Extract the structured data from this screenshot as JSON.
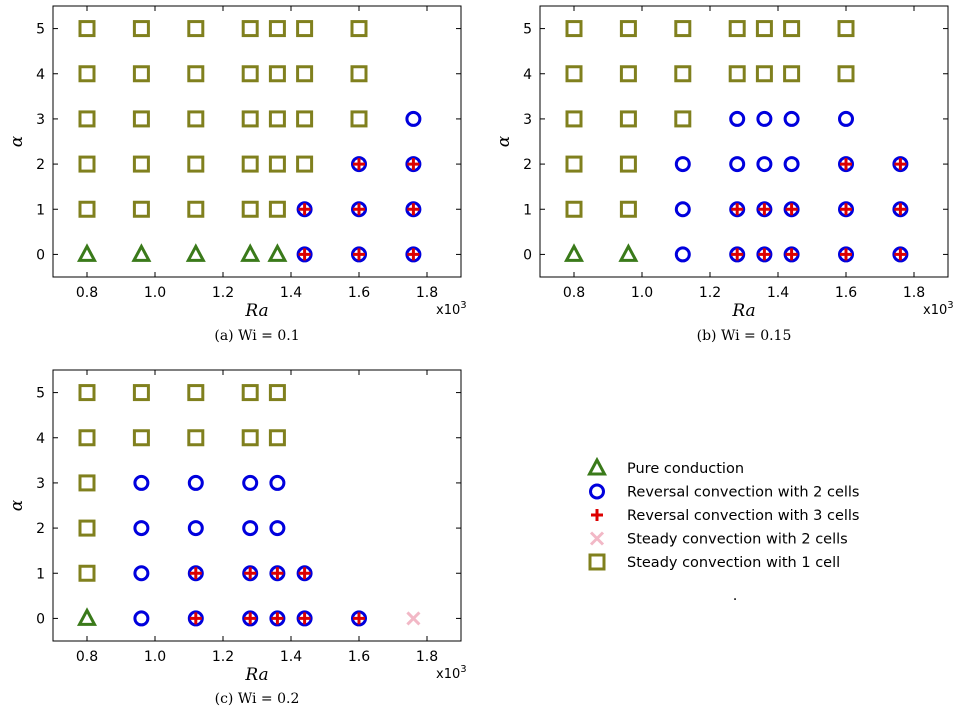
{
  "legend": [
    {
      "key": "tri",
      "label": "Pure conduction",
      "color": "#3a7a1a"
    },
    {
      "key": "circ",
      "label": "Reversal convection with 2 cells",
      "color": "#0000dd"
    },
    {
      "key": "plus",
      "label": "Reversal convection with 3 cells",
      "color": "#dd0000"
    },
    {
      "key": "x",
      "label": "Steady convection with 2 cells",
      "color": "#f2b8c6"
    },
    {
      "key": "sq",
      "label": "Steady convection with 1 cell",
      "color": "#80801e"
    }
  ],
  "legend_dot": ".",
  "chart_data": [
    {
      "type": "scatter",
      "caption": "(a) Wi = 0.1",
      "xlabel": "Ra",
      "ylabel": "α",
      "x_multiplier": "x10",
      "x_multiplier_exp": "3",
      "xlim": [
        0.7,
        1.9
      ],
      "ylim": [
        -0.5,
        5.5
      ],
      "xticks": [
        "0.8",
        "1.0",
        "1.2",
        "1.4",
        "1.6",
        "1.8"
      ],
      "yticks": [
        "0",
        "1",
        "2",
        "3",
        "4",
        "5"
      ],
      "x_values": [
        0.8,
        0.96,
        1.12,
        1.28,
        1.36,
        1.44,
        1.6,
        1.76
      ],
      "points": [
        {
          "x": 0.8,
          "y": 0,
          "m": "tri"
        },
        {
          "x": 0.96,
          "y": 0,
          "m": "tri"
        },
        {
          "x": 1.12,
          "y": 0,
          "m": "tri"
        },
        {
          "x": 1.28,
          "y": 0,
          "m": "tri"
        },
        {
          "x": 1.36,
          "y": 0,
          "m": "tri"
        },
        {
          "x": 1.44,
          "y": 0,
          "m": "circplus"
        },
        {
          "x": 1.6,
          "y": 0,
          "m": "circplus"
        },
        {
          "x": 1.76,
          "y": 0,
          "m": "circplus"
        },
        {
          "x": 0.8,
          "y": 1,
          "m": "sq"
        },
        {
          "x": 0.96,
          "y": 1,
          "m": "sq"
        },
        {
          "x": 1.12,
          "y": 1,
          "m": "sq"
        },
        {
          "x": 1.28,
          "y": 1,
          "m": "sq"
        },
        {
          "x": 1.36,
          "y": 1,
          "m": "sq"
        },
        {
          "x": 1.44,
          "y": 1,
          "m": "circplus"
        },
        {
          "x": 1.6,
          "y": 1,
          "m": "circplus"
        },
        {
          "x": 1.76,
          "y": 1,
          "m": "circplus"
        },
        {
          "x": 0.8,
          "y": 2,
          "m": "sq"
        },
        {
          "x": 0.96,
          "y": 2,
          "m": "sq"
        },
        {
          "x": 1.12,
          "y": 2,
          "m": "sq"
        },
        {
          "x": 1.28,
          "y": 2,
          "m": "sq"
        },
        {
          "x": 1.36,
          "y": 2,
          "m": "sq"
        },
        {
          "x": 1.44,
          "y": 2,
          "m": "sq"
        },
        {
          "x": 1.6,
          "y": 2,
          "m": "circplus"
        },
        {
          "x": 1.76,
          "y": 2,
          "m": "circplus"
        },
        {
          "x": 0.8,
          "y": 3,
          "m": "sq"
        },
        {
          "x": 0.96,
          "y": 3,
          "m": "sq"
        },
        {
          "x": 1.12,
          "y": 3,
          "m": "sq"
        },
        {
          "x": 1.28,
          "y": 3,
          "m": "sq"
        },
        {
          "x": 1.36,
          "y": 3,
          "m": "sq"
        },
        {
          "x": 1.44,
          "y": 3,
          "m": "sq"
        },
        {
          "x": 1.6,
          "y": 3,
          "m": "sq"
        },
        {
          "x": 1.76,
          "y": 3,
          "m": "circ"
        },
        {
          "x": 0.8,
          "y": 4,
          "m": "sq"
        },
        {
          "x": 0.96,
          "y": 4,
          "m": "sq"
        },
        {
          "x": 1.12,
          "y": 4,
          "m": "sq"
        },
        {
          "x": 1.28,
          "y": 4,
          "m": "sq"
        },
        {
          "x": 1.36,
          "y": 4,
          "m": "sq"
        },
        {
          "x": 1.44,
          "y": 4,
          "m": "sq"
        },
        {
          "x": 1.6,
          "y": 4,
          "m": "sq"
        },
        {
          "x": 0.8,
          "y": 5,
          "m": "sq"
        },
        {
          "x": 0.96,
          "y": 5,
          "m": "sq"
        },
        {
          "x": 1.12,
          "y": 5,
          "m": "sq"
        },
        {
          "x": 1.28,
          "y": 5,
          "m": "sq"
        },
        {
          "x": 1.36,
          "y": 5,
          "m": "sq"
        },
        {
          "x": 1.44,
          "y": 5,
          "m": "sq"
        },
        {
          "x": 1.6,
          "y": 5,
          "m": "sq"
        }
      ]
    },
    {
      "type": "scatter",
      "caption": "(b) Wi = 0.15",
      "xlabel": "Ra",
      "ylabel": "α",
      "x_multiplier": "x10",
      "x_multiplier_exp": "3",
      "xlim": [
        0.7,
        1.9
      ],
      "ylim": [
        -0.5,
        5.5
      ],
      "xticks": [
        "0.8",
        "1.0",
        "1.2",
        "1.4",
        "1.6",
        "1.8"
      ],
      "yticks": [
        "0",
        "1",
        "2",
        "3",
        "4",
        "5"
      ],
      "x_values": [
        0.8,
        0.96,
        1.12,
        1.28,
        1.36,
        1.44,
        1.6,
        1.76
      ],
      "points": [
        {
          "x": 0.8,
          "y": 0,
          "m": "tri"
        },
        {
          "x": 0.96,
          "y": 0,
          "m": "tri"
        },
        {
          "x": 1.12,
          "y": 0,
          "m": "circ"
        },
        {
          "x": 1.28,
          "y": 0,
          "m": "circplus"
        },
        {
          "x": 1.36,
          "y": 0,
          "m": "circplus"
        },
        {
          "x": 1.44,
          "y": 0,
          "m": "circplus"
        },
        {
          "x": 1.6,
          "y": 0,
          "m": "circplus"
        },
        {
          "x": 1.76,
          "y": 0,
          "m": "circplus"
        },
        {
          "x": 0.8,
          "y": 1,
          "m": "sq"
        },
        {
          "x": 0.96,
          "y": 1,
          "m": "sq"
        },
        {
          "x": 1.12,
          "y": 1,
          "m": "circ"
        },
        {
          "x": 1.28,
          "y": 1,
          "m": "circplus"
        },
        {
          "x": 1.36,
          "y": 1,
          "m": "circplus"
        },
        {
          "x": 1.44,
          "y": 1,
          "m": "circplus"
        },
        {
          "x": 1.6,
          "y": 1,
          "m": "circplus"
        },
        {
          "x": 1.76,
          "y": 1,
          "m": "circplus"
        },
        {
          "x": 0.8,
          "y": 2,
          "m": "sq"
        },
        {
          "x": 0.96,
          "y": 2,
          "m": "sq"
        },
        {
          "x": 1.12,
          "y": 2,
          "m": "circ"
        },
        {
          "x": 1.28,
          "y": 2,
          "m": "circ"
        },
        {
          "x": 1.36,
          "y": 2,
          "m": "circ"
        },
        {
          "x": 1.44,
          "y": 2,
          "m": "circ"
        },
        {
          "x": 1.6,
          "y": 2,
          "m": "circplus"
        },
        {
          "x": 1.76,
          "y": 2,
          "m": "circplus"
        },
        {
          "x": 0.8,
          "y": 3,
          "m": "sq"
        },
        {
          "x": 0.96,
          "y": 3,
          "m": "sq"
        },
        {
          "x": 1.12,
          "y": 3,
          "m": "sq"
        },
        {
          "x": 1.28,
          "y": 3,
          "m": "circ"
        },
        {
          "x": 1.36,
          "y": 3,
          "m": "circ"
        },
        {
          "x": 1.44,
          "y": 3,
          "m": "circ"
        },
        {
          "x": 1.6,
          "y": 3,
          "m": "circ"
        },
        {
          "x": 0.8,
          "y": 4,
          "m": "sq"
        },
        {
          "x": 0.96,
          "y": 4,
          "m": "sq"
        },
        {
          "x": 1.12,
          "y": 4,
          "m": "sq"
        },
        {
          "x": 1.28,
          "y": 4,
          "m": "sq"
        },
        {
          "x": 1.36,
          "y": 4,
          "m": "sq"
        },
        {
          "x": 1.44,
          "y": 4,
          "m": "sq"
        },
        {
          "x": 1.6,
          "y": 4,
          "m": "sq"
        },
        {
          "x": 0.8,
          "y": 5,
          "m": "sq"
        },
        {
          "x": 0.96,
          "y": 5,
          "m": "sq"
        },
        {
          "x": 1.12,
          "y": 5,
          "m": "sq"
        },
        {
          "x": 1.28,
          "y": 5,
          "m": "sq"
        },
        {
          "x": 1.36,
          "y": 5,
          "m": "sq"
        },
        {
          "x": 1.44,
          "y": 5,
          "m": "sq"
        },
        {
          "x": 1.6,
          "y": 5,
          "m": "sq"
        }
      ]
    },
    {
      "type": "scatter",
      "caption": "(c) Wi = 0.2",
      "xlabel": "Ra",
      "ylabel": "α",
      "x_multiplier": "x10",
      "x_multiplier_exp": "3",
      "xlim": [
        0.7,
        1.9
      ],
      "ylim": [
        -0.5,
        5.5
      ],
      "xticks": [
        "0.8",
        "1.0",
        "1.2",
        "1.4",
        "1.6",
        "1.8"
      ],
      "yticks": [
        "0",
        "1",
        "2",
        "3",
        "4",
        "5"
      ],
      "x_values": [
        0.8,
        0.96,
        1.12,
        1.28,
        1.36,
        1.44,
        1.6,
        1.76
      ],
      "points": [
        {
          "x": 0.8,
          "y": 0,
          "m": "tri"
        },
        {
          "x": 0.96,
          "y": 0,
          "m": "circ"
        },
        {
          "x": 1.12,
          "y": 0,
          "m": "circplus"
        },
        {
          "x": 1.28,
          "y": 0,
          "m": "circplus"
        },
        {
          "x": 1.36,
          "y": 0,
          "m": "circplus"
        },
        {
          "x": 1.44,
          "y": 0,
          "m": "circplus"
        },
        {
          "x": 1.6,
          "y": 0,
          "m": "circplus"
        },
        {
          "x": 1.76,
          "y": 0,
          "m": "x"
        },
        {
          "x": 0.8,
          "y": 1,
          "m": "sq"
        },
        {
          "x": 0.96,
          "y": 1,
          "m": "circ"
        },
        {
          "x": 1.12,
          "y": 1,
          "m": "circplus"
        },
        {
          "x": 1.28,
          "y": 1,
          "m": "circplus"
        },
        {
          "x": 1.36,
          "y": 1,
          "m": "circplus"
        },
        {
          "x": 1.44,
          "y": 1,
          "m": "circplus"
        },
        {
          "x": 0.8,
          "y": 2,
          "m": "sq"
        },
        {
          "x": 0.96,
          "y": 2,
          "m": "circ"
        },
        {
          "x": 1.12,
          "y": 2,
          "m": "circ"
        },
        {
          "x": 1.28,
          "y": 2,
          "m": "circ"
        },
        {
          "x": 1.36,
          "y": 2,
          "m": "circ"
        },
        {
          "x": 0.8,
          "y": 3,
          "m": "sq"
        },
        {
          "x": 0.96,
          "y": 3,
          "m": "circ"
        },
        {
          "x": 1.12,
          "y": 3,
          "m": "circ"
        },
        {
          "x": 1.28,
          "y": 3,
          "m": "circ"
        },
        {
          "x": 1.36,
          "y": 3,
          "m": "circ"
        },
        {
          "x": 0.8,
          "y": 4,
          "m": "sq"
        },
        {
          "x": 0.96,
          "y": 4,
          "m": "sq"
        },
        {
          "x": 1.12,
          "y": 4,
          "m": "sq"
        },
        {
          "x": 1.28,
          "y": 4,
          "m": "sq"
        },
        {
          "x": 1.36,
          "y": 4,
          "m": "sq"
        },
        {
          "x": 0.8,
          "y": 5,
          "m": "sq"
        },
        {
          "x": 0.96,
          "y": 5,
          "m": "sq"
        },
        {
          "x": 1.12,
          "y": 5,
          "m": "sq"
        },
        {
          "x": 1.28,
          "y": 5,
          "m": "sq"
        },
        {
          "x": 1.36,
          "y": 5,
          "m": "sq"
        }
      ]
    }
  ]
}
